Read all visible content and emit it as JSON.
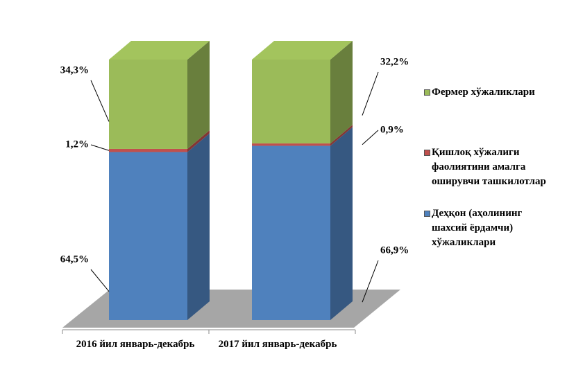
{
  "chart_data": {
    "type": "bar3d_stacked_percent",
    "categories": [
      "2016 йил январь-декабрь",
      "2017 йил январь-декабрь"
    ],
    "series": [
      {
        "name": "Деҳқон (аҳолининг шахсий ёрдамчи) хўжаликлари",
        "color": "#4f81bd",
        "values": [
          64.5,
          66.9
        ],
        "value_labels": [
          "64,5%",
          "66,9%"
        ]
      },
      {
        "name": "Қишлоқ хўжалиги фаолиятини амалга оширувчи ташкилотлар",
        "color": "#c0504d",
        "values": [
          1.2,
          0.9
        ],
        "value_labels": [
          "1,2%",
          "0,9%"
        ]
      },
      {
        "name": "Фермер хўжаликлари",
        "color": "#9bbb59",
        "values": [
          34.3,
          32.2
        ],
        "value_labels": [
          "34,3%",
          "32,2%"
        ]
      }
    ]
  }
}
